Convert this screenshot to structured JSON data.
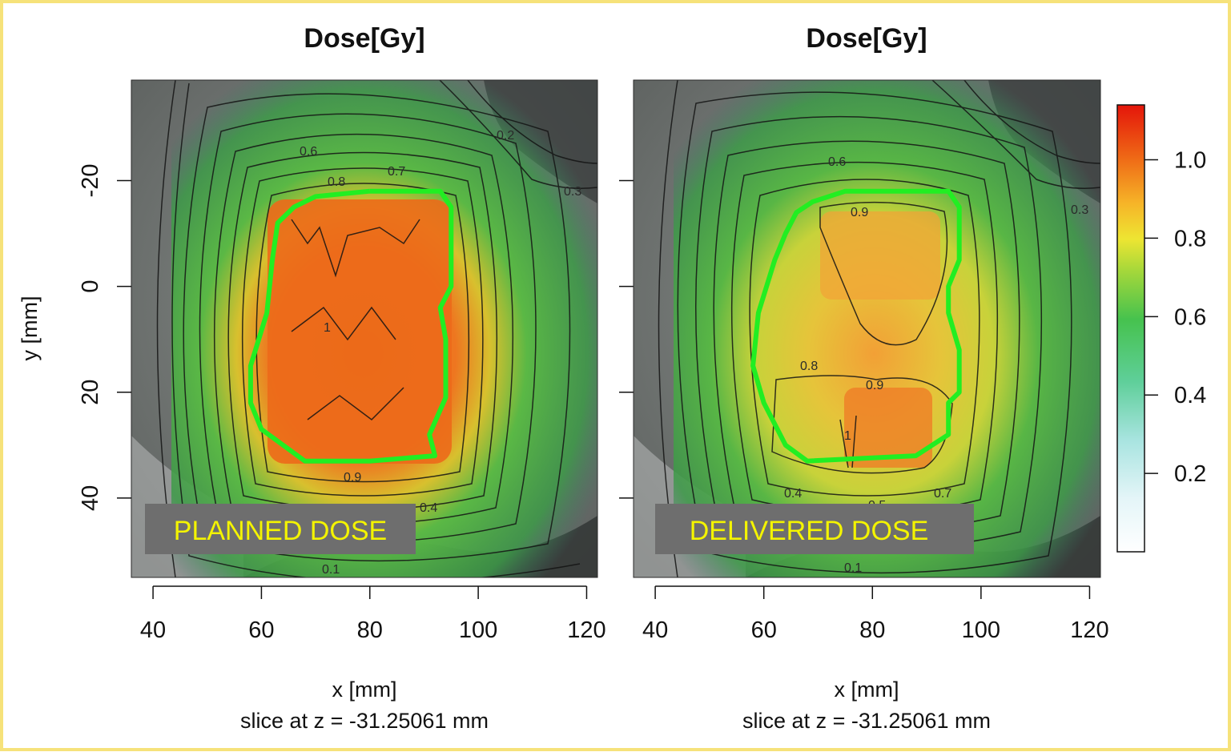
{
  "panels": [
    {
      "title": "Dose[Gy]",
      "overlay_label": "PLANNED DOSE",
      "xlabel": "x [mm]",
      "subtitle": "slice at z = -31.25061 mm",
      "contour_labels": [
        "0.6",
        "0.7",
        "0.8",
        "0.9",
        "1",
        "0.4",
        "0.3",
        "0.2",
        "0.1"
      ]
    },
    {
      "title": "Dose[Gy]",
      "overlay_label": "DELIVERED DOSE",
      "xlabel": "x [mm]",
      "subtitle": "slice at z = -31.25061 mm",
      "contour_labels": [
        "0.6",
        "0.9",
        "0.8",
        "0.9",
        "1",
        "0.4",
        "0.3",
        "0.7",
        "0.5",
        "0.1"
      ]
    }
  ],
  "ylabel": "y [mm]",
  "colors": {
    "frame": "#f6e27a",
    "contour_target": "#22ee22",
    "overlay_bg": "#6e6e6e",
    "overlay_text": "#f4f400"
  },
  "chart_data": {
    "type": "heatmap",
    "x_ticks": [
      "40",
      "60",
      "80",
      "100",
      "120"
    ],
    "y_ticks": [
      "-20",
      "0",
      "20",
      "40"
    ],
    "xlim": [
      36,
      122
    ],
    "ylim": [
      55,
      -39
    ],
    "colorbar": {
      "ticks": [
        "0.2",
        "0.4",
        "0.6",
        "0.8",
        "1.0"
      ],
      "range": [
        0,
        1.14
      ],
      "colors": [
        "#ffffff",
        "#cdeef2",
        "#7cd6c6",
        "#3cc46c",
        "#a8d83a",
        "#f0e030",
        "#f5a020",
        "#ee5a12",
        "#e51a0a"
      ]
    },
    "series": [
      {
        "name": "PLANNED DOSE",
        "target_contour_x": [
          80,
          93,
          95,
          95,
          93,
          94,
          94,
          91,
          92,
          80,
          68,
          60,
          58,
          58,
          61,
          62,
          63,
          66,
          70
        ],
        "target_contour_y": [
          -18,
          -18,
          -15,
          0,
          4,
          10,
          21,
          28,
          32,
          33,
          33,
          27,
          22,
          15,
          5,
          -5,
          -12,
          -15,
          -17
        ],
        "dose_levels": [
          0.1,
          0.2,
          0.3,
          0.4,
          0.5,
          0.6,
          0.7,
          0.8,
          0.9,
          1.0
        ],
        "core_dose": 1.0
      },
      {
        "name": "DELIVERED DOSE",
        "target_contour_x": [
          85,
          94,
          96,
          96,
          94,
          94,
          96,
          96,
          94,
          94,
          88,
          68,
          64,
          60,
          58,
          59,
          62,
          64,
          66,
          69,
          75
        ],
        "target_contour_y": [
          -18,
          -18,
          -15,
          -5,
          0,
          5,
          12,
          20,
          22,
          28,
          32,
          33,
          30,
          22,
          15,
          5,
          -5,
          -10,
          -14,
          -16,
          -18
        ],
        "dose_levels": [
          0.1,
          0.2,
          0.3,
          0.4,
          0.5,
          0.6,
          0.7,
          0.8,
          0.9,
          1.0
        ],
        "core_dose": 0.9
      }
    ]
  }
}
